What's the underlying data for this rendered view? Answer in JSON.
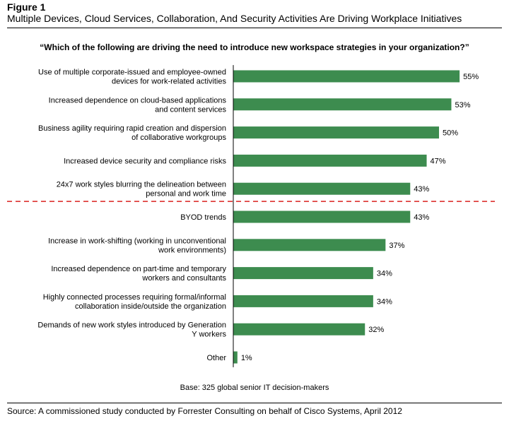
{
  "figure_label": "Figure 1",
  "figure_title": "Multiple Devices, Cloud Services, Collaboration, And Security Activities Are Driving Workplace Initiatives",
  "question": "“Which of the following are driving the need to introduce new workspace strategies in your organization?”",
  "base_note": "Base: 325 global senior IT decision-makers",
  "source": "Source: A commissioned study conducted by Forrester Consulting on behalf of Cisco Systems, April 2012",
  "colors": {
    "bar": "#3d8c4f",
    "divider": "#d9201f",
    "axis": "#000000"
  },
  "chart_data": {
    "type": "bar",
    "orientation": "horizontal",
    "value_suffix": "%",
    "xlim": [
      0,
      60
    ],
    "divider_after_index": 4,
    "categories": [
      [
        "Use of multiple corporate-issued and employee-owned",
        "devices for work-related activities"
      ],
      [
        "Increased dependence on cloud-based applications",
        "and content services"
      ],
      [
        "Business agility requiring rapid creation and dispersion",
        "of collaborative workgroups"
      ],
      [
        "Increased device security and compliance risks"
      ],
      [
        "24x7 work styles blurring the delineation between",
        "personal and work time"
      ],
      [
        "BYOD trends"
      ],
      [
        "Increase in work-shifting (working in unconventional",
        "work environments)"
      ],
      [
        "Increased dependence on part-time and temporary",
        "workers and consultants"
      ],
      [
        "Highly connected processes requiring formal/informal",
        "collaboration inside/outside the organization"
      ],
      [
        "Demands of new work styles introduced by Generation",
        "Y workers"
      ],
      [
        "Other"
      ]
    ],
    "values": [
      55,
      53,
      50,
      47,
      43,
      43,
      37,
      34,
      34,
      32,
      1
    ]
  }
}
